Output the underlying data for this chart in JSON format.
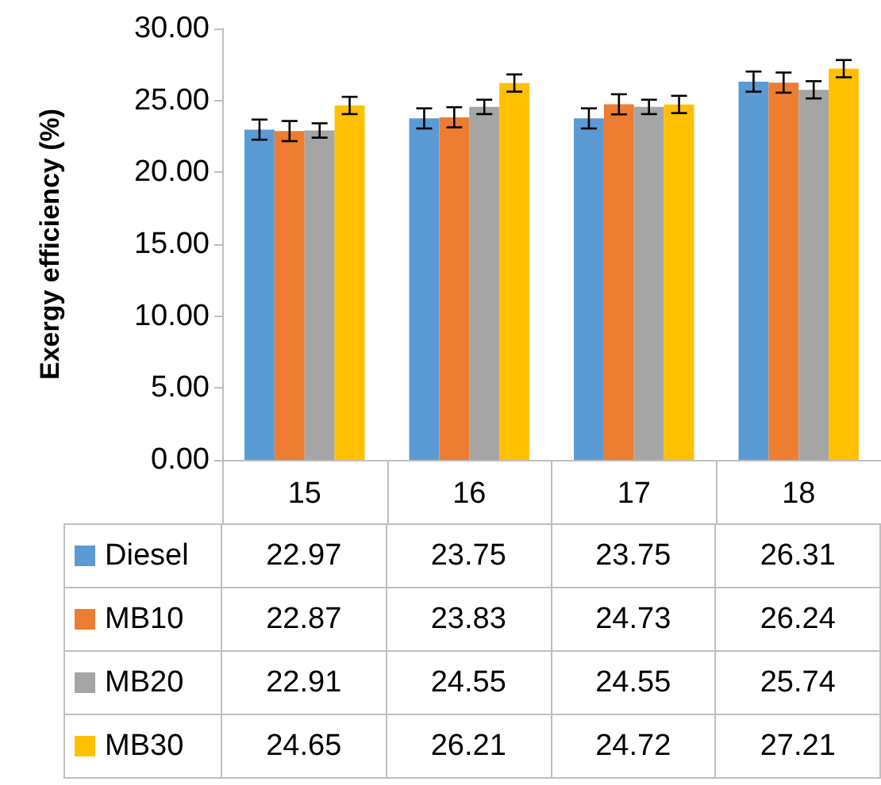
{
  "chart_data": {
    "type": "bar",
    "ylabel": "Exergy efficiency (%)",
    "categories": [
      "15",
      "16",
      "17",
      "18"
    ],
    "series": [
      {
        "name": "Diesel",
        "color": "#5b9bd5",
        "values": [
          22.97,
          23.75,
          23.75,
          26.31
        ],
        "errors": [
          0.7,
          0.7,
          0.7,
          0.7
        ]
      },
      {
        "name": "MB10",
        "color": "#ed7d31",
        "values": [
          22.87,
          23.83,
          24.73,
          26.24
        ],
        "errors": [
          0.7,
          0.7,
          0.7,
          0.7
        ]
      },
      {
        "name": "MB20",
        "color": "#a5a5a5",
        "values": [
          22.91,
          24.55,
          24.55,
          25.74
        ],
        "errors": [
          0.5,
          0.5,
          0.5,
          0.6
        ]
      },
      {
        "name": "MB30",
        "color": "#ffc000",
        "values": [
          24.65,
          26.21,
          24.72,
          27.21
        ],
        "errors": [
          0.6,
          0.6,
          0.6,
          0.6
        ]
      }
    ],
    "ylim": [
      0,
      30
    ],
    "yticks": [
      {
        "value": 0,
        "label": "0.00"
      },
      {
        "value": 5,
        "label": "5.00"
      },
      {
        "value": 10,
        "label": "10.00"
      },
      {
        "value": 15,
        "label": "15.00"
      },
      {
        "value": 20,
        "label": "20.00"
      },
      {
        "value": 25,
        "label": "25.00"
      },
      {
        "value": 30,
        "label": "30.00"
      }
    ],
    "grid": false,
    "legend": "bottom",
    "data_labels": true
  }
}
